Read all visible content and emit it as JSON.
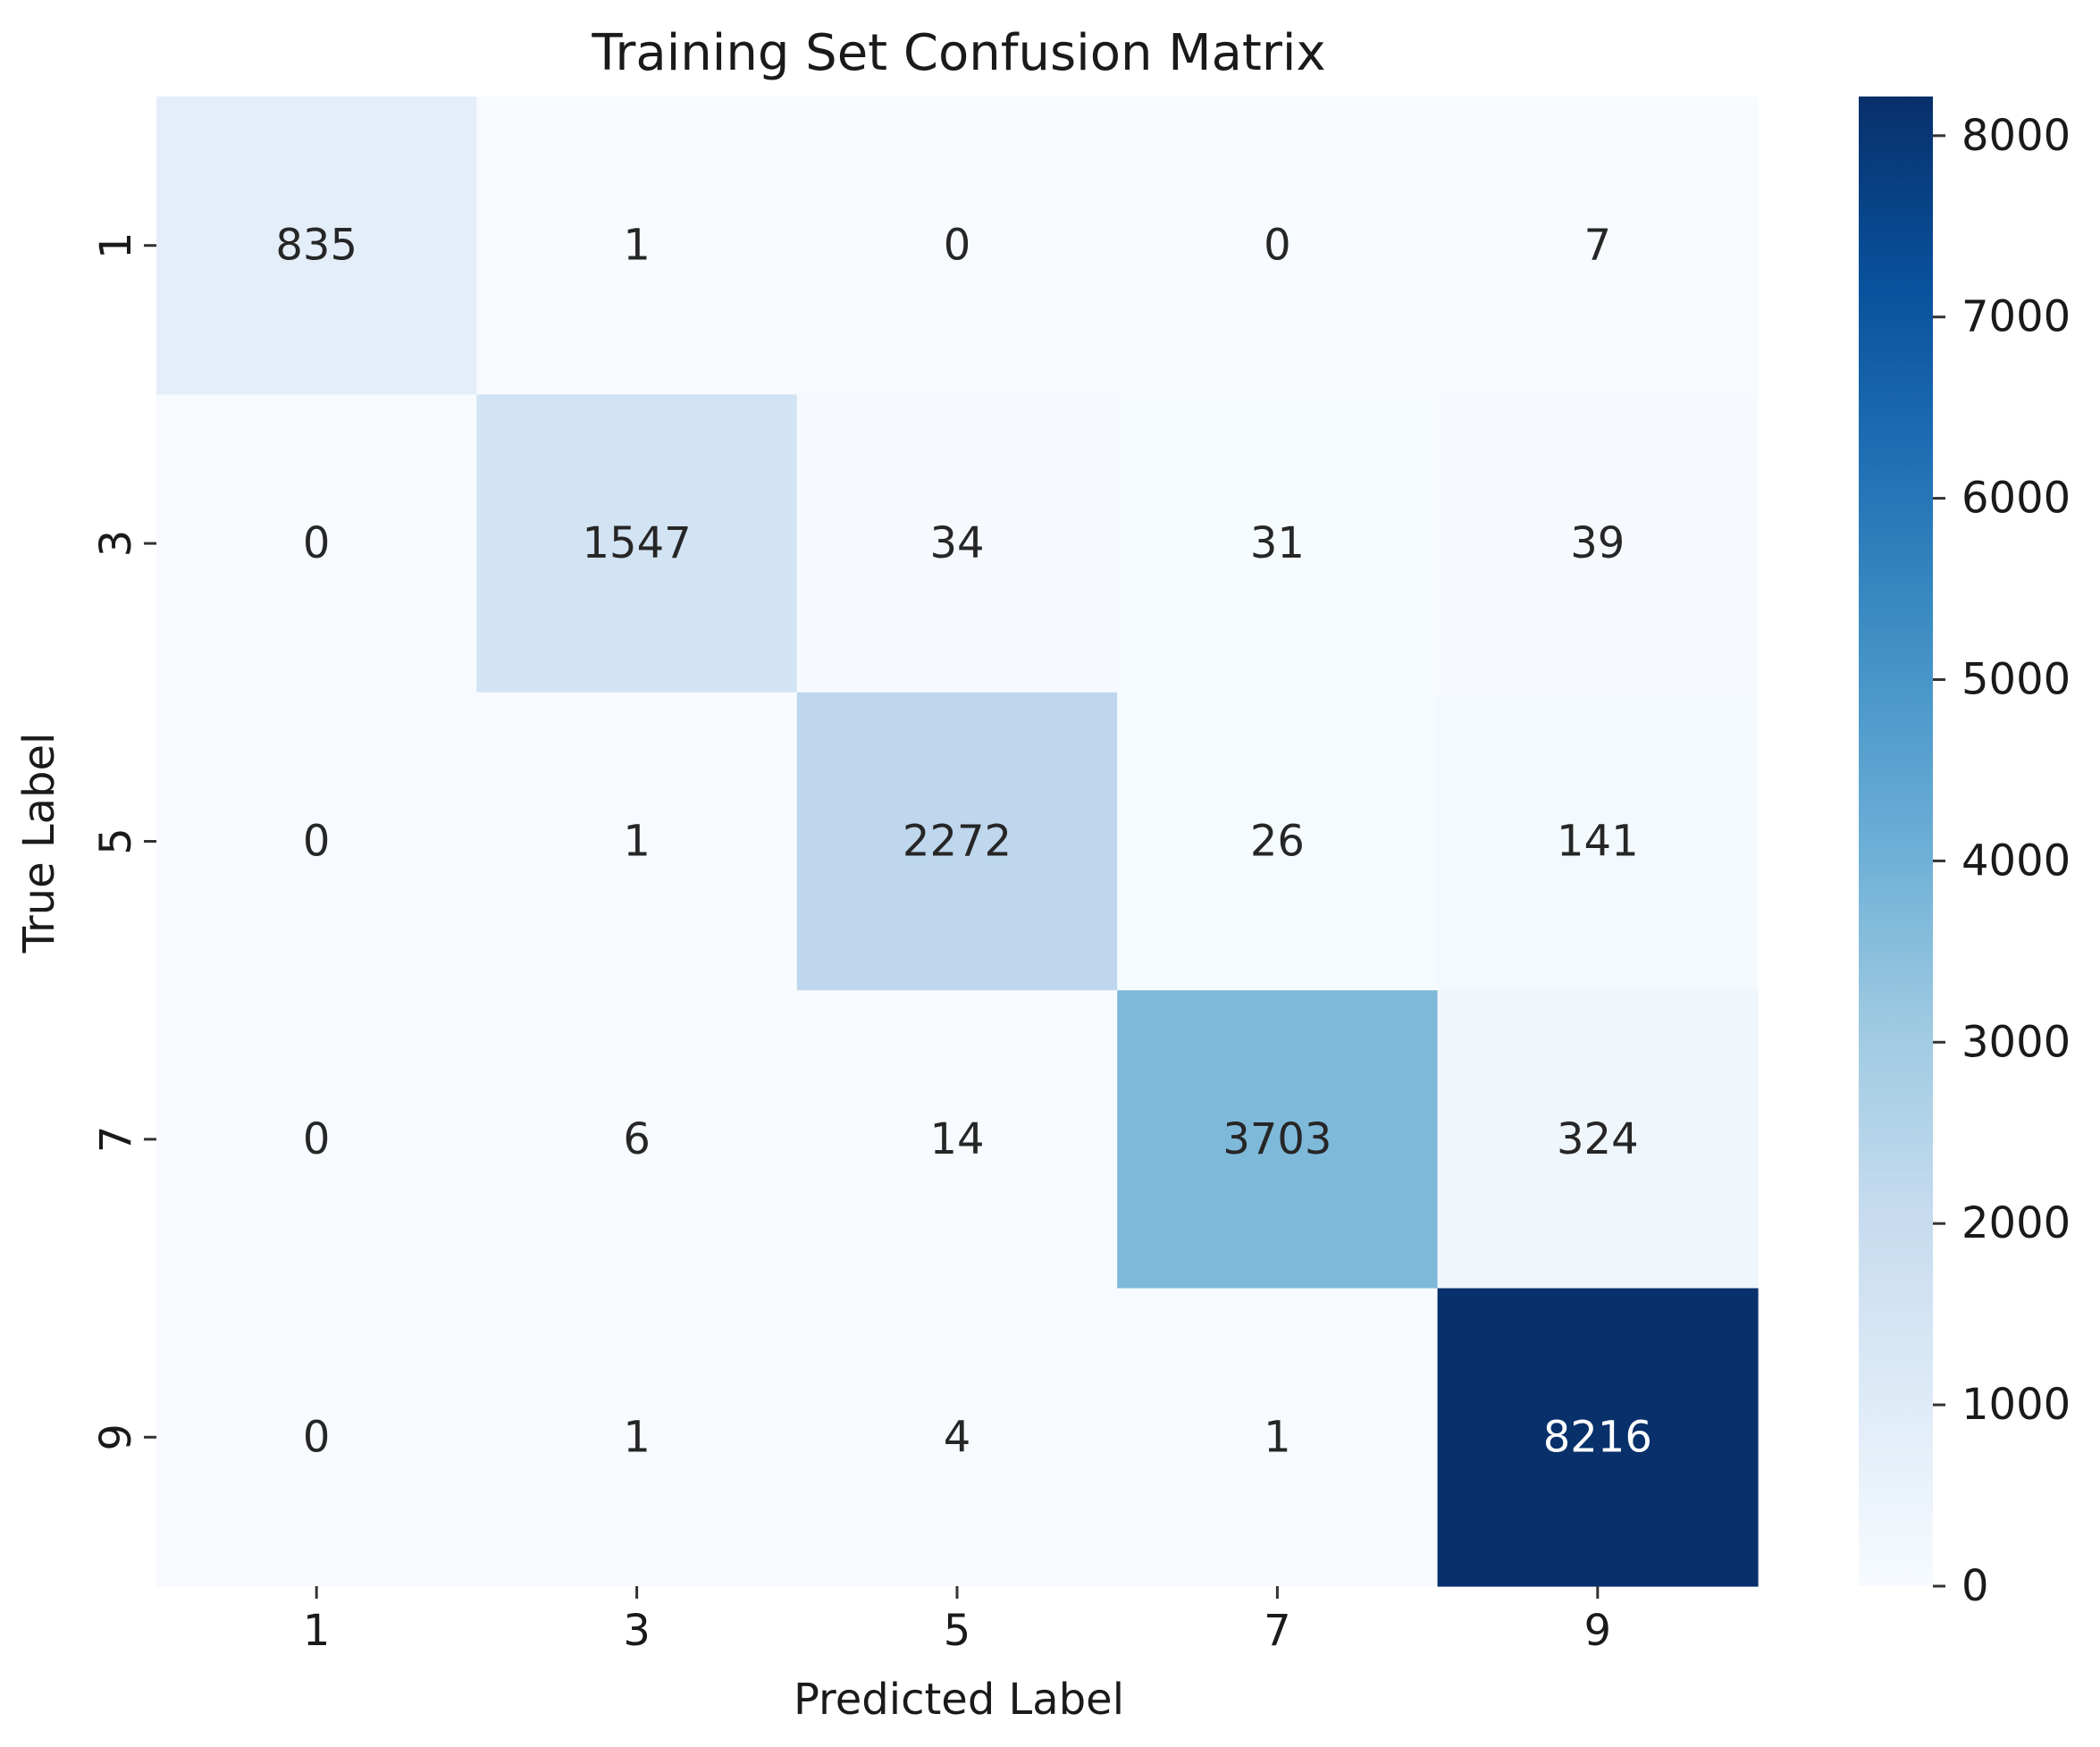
{
  "chart_data": {
    "type": "heatmap",
    "title": "Training Set Confusion Matrix",
    "xlabel": "Predicted Label",
    "ylabel": "True Label",
    "x_categories": [
      "1",
      "3",
      "5",
      "7",
      "9"
    ],
    "y_categories": [
      "1",
      "3",
      "5",
      "7",
      "9"
    ],
    "values": [
      [
        835,
        1,
        0,
        0,
        7
      ],
      [
        0,
        1547,
        34,
        31,
        39
      ],
      [
        0,
        1,
        2272,
        26,
        141
      ],
      [
        0,
        6,
        14,
        3703,
        324
      ],
      [
        0,
        1,
        4,
        1,
        8216
      ]
    ],
    "colormap": "Blues",
    "colorbar": {
      "min": 0,
      "max": 8216,
      "ticks": [
        0,
        1000,
        2000,
        3000,
        4000,
        5000,
        6000,
        7000,
        8000
      ]
    },
    "colors": {
      "low": "#f7fbff",
      "high": "#08306b",
      "light_text": "#ffffff",
      "dark_text": "#262626"
    }
  }
}
